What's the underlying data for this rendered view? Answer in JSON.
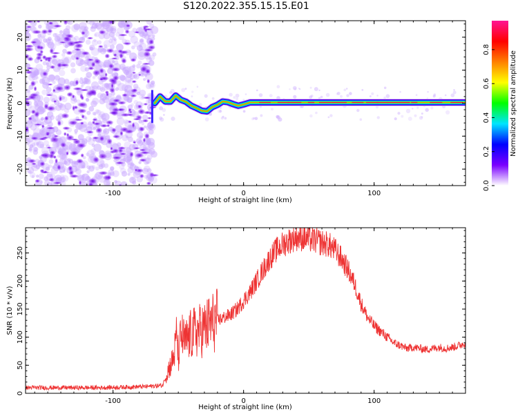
{
  "title": "S120.2022.355.15.15.E01",
  "chart_data": [
    {
      "type": "heatmap",
      "xlabel": "Height of straight line (km)",
      "ylabel": "Frequency (Hz)",
      "xlim": [
        -167,
        170
      ],
      "ylim": [
        -25,
        25
      ],
      "x_ticks": [
        -100,
        0,
        100
      ],
      "y_ticks": [
        -20,
        -10,
        0,
        10,
        20
      ],
      "noise_region_x": [
        -167,
        -68
      ],
      "ridge": [
        {
          "x": -68,
          "y": 0.0
        },
        {
          "x": -64,
          "y": 2.0
        },
        {
          "x": -60,
          "y": 0.5
        },
        {
          "x": -56,
          "y": 0.5
        },
        {
          "x": -52,
          "y": 2.3
        },
        {
          "x": -48,
          "y": 1.0
        },
        {
          "x": -44,
          "y": 0.4
        },
        {
          "x": -40,
          "y": -0.8
        },
        {
          "x": -36,
          "y": -1.5
        },
        {
          "x": -32,
          "y": -2.3
        },
        {
          "x": -28,
          "y": -2.5
        },
        {
          "x": -24,
          "y": -1.2
        },
        {
          "x": -20,
          "y": -0.5
        },
        {
          "x": -16,
          "y": 0.5
        },
        {
          "x": -12,
          "y": 0.3
        },
        {
          "x": -8,
          "y": -0.3
        },
        {
          "x": -4,
          "y": -0.8
        },
        {
          "x": 0,
          "y": -0.4
        },
        {
          "x": 5,
          "y": 0.2
        },
        {
          "x": 10,
          "y": 0.2
        },
        {
          "x": 170,
          "y": 0.2
        }
      ],
      "colorbar": {
        "label": "Normalized spectral amplitude",
        "ticks": [
          "0.0",
          "0.2",
          "0.4",
          "0.6",
          "0.8"
        ],
        "tick_values": [
          0.0,
          0.2,
          0.4,
          0.6,
          0.8
        ],
        "range": [
          0,
          0.97
        ],
        "colors": [
          "#ffffff",
          "#7a00ff",
          "#0000ff",
          "#00e5ff",
          "#00ff00",
          "#ffff00",
          "#ff8000",
          "#ff0000",
          "#ff1493"
        ]
      }
    },
    {
      "type": "line",
      "xlabel": "Height of straight line (km)",
      "ylabel": "SNR (10 * v/v)",
      "xlim": [
        -167,
        170
      ],
      "ylim": [
        0,
        295
      ],
      "x_ticks": [
        -100,
        0,
        100
      ],
      "y_ticks": [
        0,
        50,
        100,
        150,
        200,
        250
      ],
      "series": [
        {
          "color": "#ee3333",
          "x": [
            -167,
            -150,
            -130,
            -110,
            -90,
            -75,
            -62,
            -58,
            -55,
            -53,
            -51,
            -50,
            -48,
            -45,
            -40,
            -35,
            -30,
            -25,
            -20,
            -15,
            -10,
            -5,
            0,
            5,
            10,
            15,
            20,
            25,
            30,
            35,
            40,
            45,
            50,
            55,
            60,
            65,
            70,
            75,
            80,
            85,
            90,
            95,
            100,
            105,
            110,
            115,
            120,
            125,
            130,
            135,
            140,
            145,
            150,
            155,
            160,
            165,
            170
          ],
          "values": [
            10,
            10,
            10,
            10,
            11,
            12,
            14,
            40,
            55,
            70,
            110,
            60,
            105,
            90,
            105,
            110,
            115,
            125,
            130,
            135,
            140,
            150,
            165,
            180,
            200,
            220,
            240,
            255,
            265,
            272,
            278,
            277,
            275,
            272,
            268,
            265,
            255,
            240,
            220,
            195,
            160,
            135,
            120,
            110,
            100,
            90,
            85,
            80,
            82,
            80,
            78,
            80,
            82,
            80,
            82,
            85,
            90
          ]
        }
      ]
    }
  ]
}
